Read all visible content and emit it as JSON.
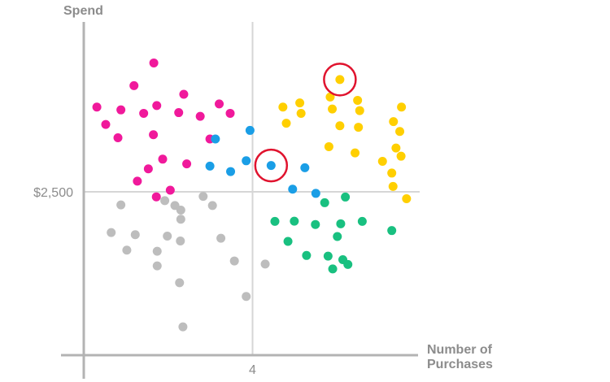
{
  "chart_data": {
    "type": "scatter",
    "title": "",
    "xlabel": "Number of Purchases",
    "xlabel_lines": [
      "Number of",
      "Purchases"
    ],
    "ylabel": "Spend",
    "x_ticks": [
      {
        "value": 4,
        "label": "4"
      }
    ],
    "y_ticks": [
      {
        "value": 2500,
        "label": "$2,500"
      }
    ],
    "xlim": [
      0,
      8
    ],
    "ylim": [
      0,
      5000
    ],
    "grid": "reference lines at x=4 and y=$2,500",
    "legend": "none",
    "series": [
      {
        "color": "#f0199b",
        "points": [
          [
            0.31,
            3797
          ],
          [
            0.88,
            3754
          ],
          [
            1.42,
            3701
          ],
          [
            1.66,
            4472
          ],
          [
            1.19,
            4125
          ],
          [
            1.73,
            3820
          ],
          [
            2.37,
            3992
          ],
          [
            3.21,
            3845
          ],
          [
            3.47,
            3701
          ],
          [
            0.52,
            3531
          ],
          [
            0.81,
            3327
          ],
          [
            1.65,
            3374
          ],
          [
            2.25,
            3712
          ],
          [
            2.76,
            3655
          ],
          [
            1.87,
            3000
          ],
          [
            2.99,
            3308
          ],
          [
            2.44,
            2928
          ],
          [
            1.53,
            2851
          ],
          [
            1.27,
            2663
          ],
          [
            2.05,
            2525
          ],
          [
            1.72,
            2423
          ]
        ]
      },
      {
        "color": "#1a9ee6",
        "points": [
          [
            3.94,
            3440
          ],
          [
            3.12,
            3308
          ],
          [
            3.85,
            2975
          ],
          [
            2.99,
            2893
          ],
          [
            4.44,
            2903
          ],
          [
            5.24,
            2869
          ],
          [
            3.48,
            2810
          ],
          [
            4.95,
            2540
          ],
          [
            5.5,
            2476
          ]
        ]
      },
      {
        "color": "#ffcf00",
        "points": [
          [
            6.07,
            4218
          ],
          [
            5.84,
            3950
          ],
          [
            6.49,
            3900
          ],
          [
            4.72,
            3797
          ],
          [
            5.12,
            3860
          ],
          [
            5.89,
            3767
          ],
          [
            6.54,
            3743
          ],
          [
            7.53,
            3797
          ],
          [
            5.15,
            3700
          ],
          [
            7.34,
            3574
          ],
          [
            4.8,
            3550
          ],
          [
            6.07,
            3510
          ],
          [
            6.51,
            3488
          ],
          [
            7.49,
            3423
          ],
          [
            5.81,
            3191
          ],
          [
            7.4,
            3170
          ],
          [
            6.43,
            3095
          ],
          [
            7.52,
            3045
          ],
          [
            7.08,
            2966
          ],
          [
            7.3,
            2787
          ],
          [
            7.33,
            2583
          ],
          [
            7.65,
            2394
          ]
        ]
      },
      {
        "color": "#19c080",
        "points": [
          [
            6.2,
            2420
          ],
          [
            5.71,
            2333
          ],
          [
            4.53,
            2047
          ],
          [
            4.99,
            2051
          ],
          [
            5.49,
            2000
          ],
          [
            6.09,
            2011
          ],
          [
            6.6,
            2047
          ],
          [
            7.3,
            1907
          ],
          [
            6.01,
            1816
          ],
          [
            4.84,
            1741
          ],
          [
            5.28,
            1526
          ],
          [
            5.79,
            1516
          ],
          [
            6.14,
            1462
          ],
          [
            6.26,
            1388
          ],
          [
            5.9,
            1320
          ]
        ]
      },
      {
        "color": "#bdbdbd",
        "points": [
          [
            2.83,
            2430
          ],
          [
            1.92,
            2365
          ],
          [
            0.88,
            2300
          ],
          [
            2.16,
            2290
          ],
          [
            3.05,
            2290
          ],
          [
            2.3,
            2220
          ],
          [
            2.3,
            2080
          ],
          [
            0.65,
            1876
          ],
          [
            1.22,
            1844
          ],
          [
            1.98,
            1822
          ],
          [
            3.25,
            1790
          ],
          [
            2.29,
            1748
          ],
          [
            1.02,
            1608
          ],
          [
            1.74,
            1591
          ],
          [
            3.57,
            1442
          ],
          [
            4.3,
            1394
          ],
          [
            1.74,
            1367
          ],
          [
            2.27,
            1109
          ],
          [
            3.85,
            899
          ],
          [
            2.35,
            434
          ]
        ]
      }
    ],
    "highlighted_points": [
      {
        "x": 4.44,
        "y": 2903,
        "color": "#1a9ee6",
        "ring_color": "#e0132e"
      },
      {
        "x": 6.07,
        "y": 4218,
        "color": "#ffcf00",
        "ring_color": "#e0132e"
      }
    ]
  }
}
